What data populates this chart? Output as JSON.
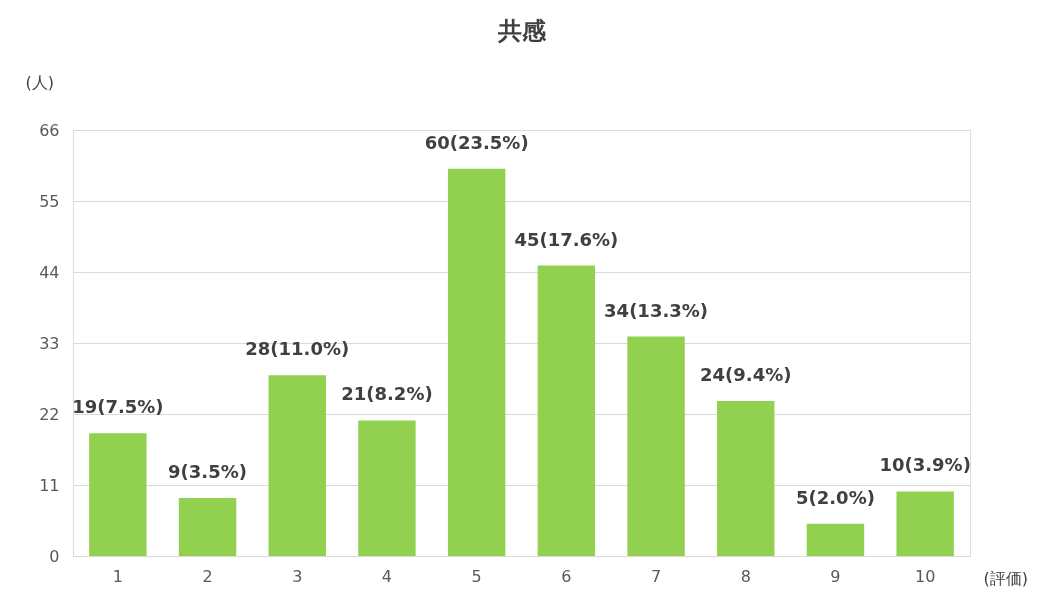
{
  "chart_data": {
    "type": "bar",
    "title": "共感",
    "ylabel": "(人)",
    "xlabel": "(評価)",
    "categories": [
      "1",
      "2",
      "3",
      "4",
      "5",
      "6",
      "7",
      "8",
      "9",
      "10"
    ],
    "values": [
      19,
      9,
      28,
      21,
      60,
      45,
      34,
      24,
      5,
      10
    ],
    "value_labels": [
      "19(7.5%)",
      "9(3.5%)",
      "28(11.0%)",
      "21(8.2%)",
      "60(23.5%)",
      "45(17.6%)",
      "34(13.3%)",
      "24(9.4%)",
      "5(2.0%)",
      "10(3.9%)"
    ],
    "color": "#92d050",
    "ylim": [
      0,
      66
    ],
    "yticks": [
      0,
      11,
      22,
      33,
      44,
      55,
      66
    ],
    "grid": "y"
  }
}
